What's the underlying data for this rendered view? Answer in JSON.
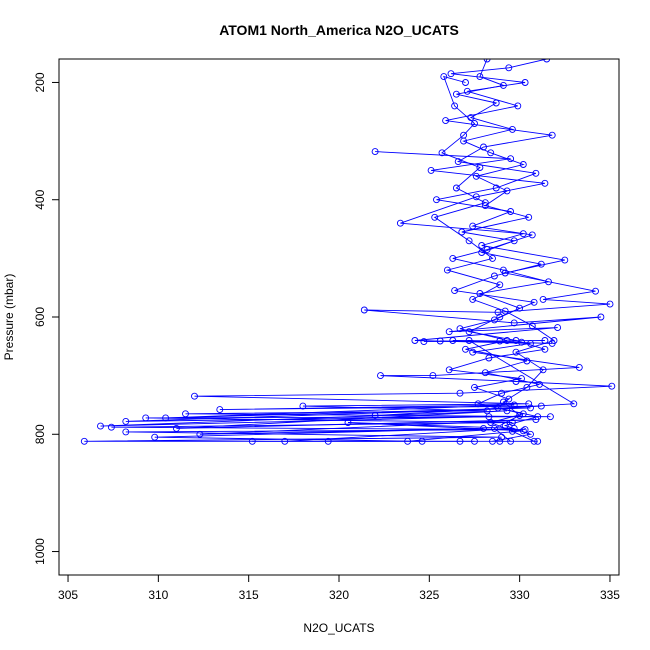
{
  "chart_data": {
    "type": "scatter",
    "title": "ATOM1 North_America N2O_UCATS",
    "xlabel": "N2O_UCATS",
    "ylabel": "Pressure (mbar)",
    "xlim": [
      304.5,
      335.5
    ],
    "ylim": [
      1040,
      160
    ],
    "y_reversed": true,
    "x_ticks": [
      305,
      310,
      315,
      320,
      325,
      330,
      335
    ],
    "y_ticks": [
      200,
      400,
      600,
      800,
      1000
    ],
    "grid": false,
    "legend": "none",
    "marker": "open-circle",
    "connect_points": true,
    "color": "#0000ff",
    "series": [
      {
        "points": [
          [
            328.2,
            160
          ],
          [
            327.8,
            190
          ],
          [
            329.1,
            205
          ],
          [
            326.5,
            220
          ],
          [
            328.7,
            235
          ],
          [
            327.3,
            260
          ],
          [
            329.6,
            280
          ],
          [
            326.9,
            300
          ],
          [
            328.4,
            320
          ],
          [
            330.2,
            340
          ],
          [
            327.6,
            360
          ],
          [
            329.3,
            385
          ],
          [
            328.1,
            410
          ],
          [
            330.5,
            430
          ],
          [
            326.8,
            455
          ],
          [
            329.7,
            470
          ],
          [
            327.9,
            490
          ],
          [
            331.2,
            510
          ],
          [
            328.6,
            530
          ],
          [
            326.4,
            555
          ],
          [
            330.8,
            575
          ],
          [
            328.9,
            600
          ],
          [
            327.2,
            625
          ],
          [
            329.8,
            640
          ],
          [
            331.4,
            655
          ],
          [
            328.3,
            670
          ],
          [
            326.1,
            690
          ],
          [
            330.1,
            705
          ],
          [
            327.5,
            720
          ],
          [
            329.4,
            740
          ],
          [
            328.8,
            755
          ],
          [
            331.0,
            770
          ],
          [
            329.2,
            785
          ],
          [
            330.6,
            800
          ],
          [
            328.5,
            812
          ]
        ]
      },
      {
        "points": [
          [
            331.5,
            160
          ],
          [
            329.4,
            175
          ],
          [
            326.2,
            185
          ],
          [
            330.3,
            200
          ],
          [
            327.1,
            215
          ],
          [
            329.9,
            240
          ],
          [
            325.9,
            265
          ],
          [
            331.8,
            290
          ],
          [
            328.0,
            310
          ],
          [
            326.6,
            335
          ],
          [
            330.9,
            355
          ],
          [
            328.7,
            380
          ],
          [
            325.4,
            400
          ],
          [
            329.5,
            420
          ],
          [
            327.4,
            445
          ],
          [
            330.7,
            460
          ],
          [
            328.2,
            485
          ],
          [
            326.3,
            500
          ],
          [
            329.1,
            520
          ],
          [
            331.6,
            540
          ],
          [
            327.8,
            560
          ],
          [
            330.0,
            585
          ],
          [
            328.6,
            605
          ],
          [
            326.7,
            620
          ],
          [
            329.3,
            640
          ],
          [
            327.0,
            655
          ],
          [
            330.4,
            675
          ],
          [
            328.1,
            695
          ],
          [
            331.1,
            715
          ],
          [
            329.0,
            730
          ],
          [
            327.7,
            748
          ],
          [
            330.2,
            765
          ],
          [
            328.4,
            780
          ],
          [
            329.6,
            795
          ],
          [
            330.8,
            812
          ]
        ]
      },
      {
        "points": [
          [
            322.0,
            318
          ],
          [
            329.5,
            330
          ],
          [
            325.1,
            350
          ],
          [
            331.4,
            372
          ],
          [
            327.6,
            395
          ],
          [
            323.4,
            440
          ],
          [
            330.2,
            458
          ],
          [
            327.9,
            478
          ],
          [
            332.5,
            503
          ],
          [
            329.2,
            525
          ],
          [
            334.2,
            556
          ],
          [
            331.3,
            570
          ],
          [
            335.0,
            578
          ],
          [
            328.8,
            592
          ],
          [
            321.4,
            588
          ],
          [
            329.7,
            610
          ],
          [
            334.5,
            600
          ],
          [
            326.1,
            625
          ],
          [
            332.1,
            618
          ],
          [
            324.2,
            640
          ],
          [
            330.6,
            645
          ],
          [
            327.4,
            660
          ],
          [
            333.3,
            686
          ],
          [
            325.2,
            700
          ],
          [
            322.3,
            700
          ],
          [
            329.8,
            710
          ],
          [
            335.1,
            718
          ],
          [
            326.7,
            730
          ],
          [
            312.0,
            735
          ],
          [
            330.5,
            748
          ],
          [
            318.0,
            752
          ],
          [
            328.2,
            760
          ],
          [
            311.5,
            765
          ],
          [
            331.7,
            770
          ],
          [
            309.3,
            772
          ],
          [
            329.6,
            780
          ],
          [
            307.4,
            788
          ],
          [
            330.3,
            792
          ],
          [
            308.2,
            796
          ],
          [
            329.0,
            805
          ],
          [
            305.9,
            812
          ],
          [
            327.5,
            812
          ]
        ]
      },
      {
        "points": [
          [
            331.4,
            640
          ],
          [
            324.7,
            642
          ],
          [
            328.9,
            641
          ],
          [
            326.3,
            640
          ],
          [
            331.8,
            645
          ],
          [
            325.6,
            641
          ],
          [
            330.1,
            643
          ],
          [
            327.2,
            640
          ],
          [
            333.0,
            748
          ],
          [
            322.0,
            768
          ],
          [
            331.2,
            752
          ],
          [
            313.4,
            758
          ],
          [
            329.7,
            750
          ],
          [
            310.4,
            772
          ],
          [
            330.6,
            755
          ],
          [
            308.2,
            778
          ],
          [
            328.3,
            770
          ],
          [
            306.8,
            786
          ],
          [
            329.3,
            760
          ],
          [
            311.0,
            790
          ],
          [
            330.9,
            775
          ],
          [
            312.3,
            800
          ],
          [
            328.0,
            790
          ],
          [
            309.8,
            805
          ],
          [
            324.6,
            812
          ],
          [
            315.2,
            812
          ],
          [
            326.7,
            812
          ],
          [
            319.4,
            812
          ],
          [
            328.9,
            812
          ],
          [
            317.0,
            812
          ],
          [
            329.7,
            790
          ],
          [
            320.5,
            780
          ],
          [
            330.2,
            794
          ],
          [
            323.8,
            812
          ],
          [
            331.0,
            812
          ]
        ]
      },
      {
        "points": [
          [
            327.0,
            200
          ],
          [
            325.8,
            190
          ],
          [
            326.4,
            240
          ],
          [
            327.5,
            270
          ],
          [
            326.9,
            290
          ],
          [
            325.7,
            320
          ],
          [
            327.8,
            345
          ],
          [
            326.5,
            380
          ],
          [
            328.1,
            405
          ],
          [
            325.3,
            430
          ],
          [
            327.2,
            470
          ],
          [
            328.5,
            500
          ],
          [
            326.0,
            520
          ],
          [
            328.9,
            545
          ],
          [
            327.4,
            570
          ],
          [
            329.2,
            590
          ],
          [
            330.7,
            615
          ],
          [
            331.9,
            640
          ],
          [
            329.8,
            660
          ],
          [
            331.3,
            690
          ],
          [
            330.4,
            720
          ],
          [
            329.1,
            745
          ],
          [
            330.0,
            768
          ],
          [
            328.6,
            790
          ],
          [
            329.5,
            812
          ]
        ]
      }
    ]
  }
}
